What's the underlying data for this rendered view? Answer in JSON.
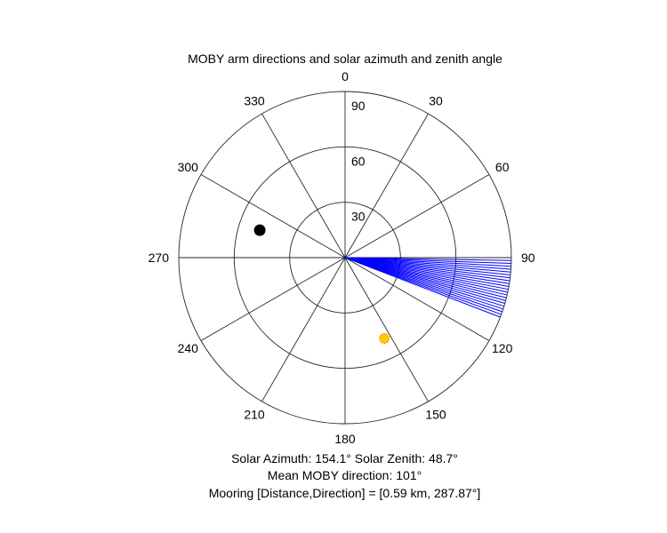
{
  "chart_data": {
    "type": "polar",
    "title": "MOBY arm directions and solar azimuth and zenith angle",
    "theta_direction": "clockwise",
    "theta_zero": "top",
    "theta_ticks": [
      0,
      30,
      60,
      90,
      120,
      150,
      180,
      210,
      240,
      270,
      300,
      330
    ],
    "r_ticks": [
      30,
      60,
      90
    ],
    "r_max": 90,
    "arm_directions_deg": [
      91,
      92,
      93,
      94,
      95,
      96,
      97,
      98,
      99,
      100,
      101,
      102,
      103,
      104,
      105,
      106,
      107,
      108,
      109,
      110,
      111
    ],
    "solar_point": {
      "azimuth_deg": 154.1,
      "zenith_deg": 48.7
    },
    "mooring_point": {
      "direction_deg": 287.87
    },
    "colors": {
      "arms": "#0000ff",
      "sun": "#ffc800",
      "mooring": "#000000",
      "grid": "#262626"
    }
  },
  "captions": {
    "solar": "Solar Azimuth: 154.1°    Solar Zenith: 48.7°",
    "mean": "Mean MOBY direction: 101°",
    "mooring": "Mooring [Distance,Direction] = [0.59 km, 287.87°]"
  }
}
